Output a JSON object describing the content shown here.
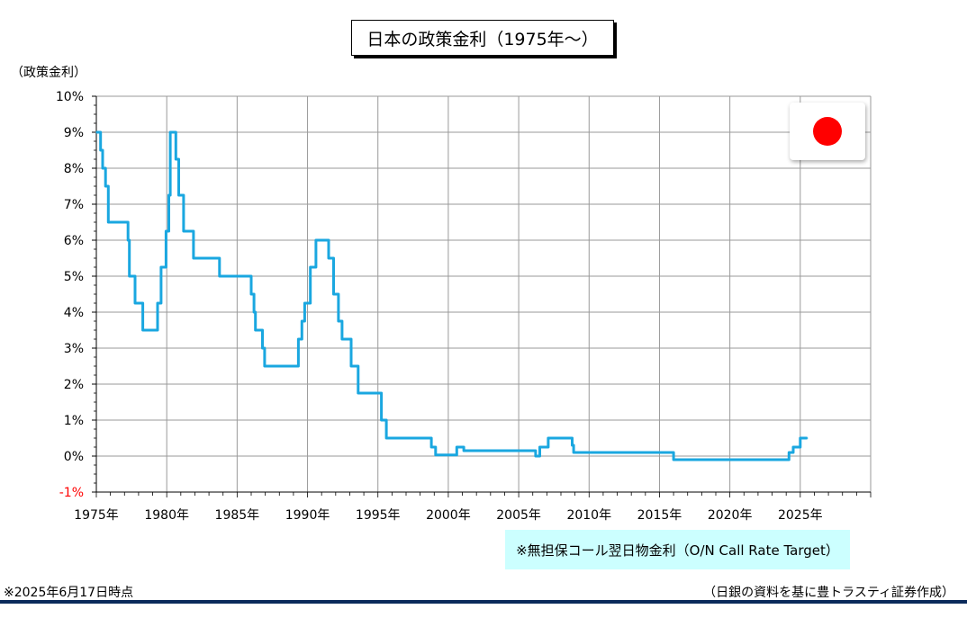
{
  "title": "日本の政策金利（1975年〜）",
  "y_unit": "（政策金利）",
  "note": "※無担保コール翌日物金利（O/N Call Rate Target）",
  "footer_left": "※2025年6月17日時点",
  "footer_right": "（日銀の資料を基に豊トラスティ証券作成）",
  "flag_icon": "japan-flag-icon",
  "colors": {
    "line": "#1aa7e0",
    "negative_tick": "#ff0000",
    "note_bg": "#ccffff",
    "footer_bar": "#0b2a5b"
  },
  "chart_data": {
    "type": "line",
    "title": "日本の政策金利（1975年〜）",
    "ylabel": "（政策金利）",
    "xlim": [
      1975,
      2030
    ],
    "ylim": [
      -1,
      10
    ],
    "grid": true,
    "step": true,
    "x_ticks": [
      1975,
      1980,
      1985,
      1990,
      1995,
      2000,
      2005,
      2010,
      2015,
      2020,
      2025
    ],
    "x_tick_labels": [
      "1975年",
      "1980年",
      "1985年",
      "1990年",
      "1995年",
      "2000年",
      "2005年",
      "2010年",
      "2015年",
      "2020年",
      "2025年"
    ],
    "y_ticks": [
      -1,
      0,
      1,
      2,
      3,
      4,
      5,
      6,
      7,
      8,
      9,
      10
    ],
    "y_tick_labels": [
      "-1%",
      "0%",
      "1%",
      "2%",
      "3%",
      "4%",
      "5%",
      "6%",
      "7%",
      "8%",
      "9%",
      "10%"
    ],
    "series": [
      {
        "values": [
          [
            1975.0,
            9.0
          ],
          [
            1975.3,
            8.5
          ],
          [
            1975.45,
            8.0
          ],
          [
            1975.65,
            7.5
          ],
          [
            1975.85,
            6.5
          ],
          [
            1977.25,
            6.0
          ],
          [
            1977.35,
            5.0
          ],
          [
            1977.75,
            4.25
          ],
          [
            1978.3,
            3.5
          ],
          [
            1979.35,
            4.25
          ],
          [
            1979.6,
            5.25
          ],
          [
            1979.95,
            6.25
          ],
          [
            1980.15,
            7.25
          ],
          [
            1980.25,
            9.0
          ],
          [
            1980.65,
            8.25
          ],
          [
            1980.85,
            7.25
          ],
          [
            1981.2,
            6.25
          ],
          [
            1981.9,
            5.5
          ],
          [
            1983.75,
            5.0
          ],
          [
            1986.0,
            4.5
          ],
          [
            1986.2,
            4.0
          ],
          [
            1986.3,
            3.5
          ],
          [
            1986.8,
            3.0
          ],
          [
            1986.95,
            2.5
          ],
          [
            1989.35,
            3.25
          ],
          [
            1989.6,
            3.75
          ],
          [
            1989.8,
            4.25
          ],
          [
            1990.2,
            5.25
          ],
          [
            1990.6,
            6.0
          ],
          [
            1991.5,
            5.5
          ],
          [
            1991.85,
            4.5
          ],
          [
            1992.2,
            3.75
          ],
          [
            1992.45,
            3.25
          ],
          [
            1993.1,
            2.5
          ],
          [
            1993.6,
            1.75
          ],
          [
            1995.25,
            1.0
          ],
          [
            1995.6,
            0.5
          ],
          [
            1998.8,
            0.25
          ],
          [
            1999.1,
            0.03
          ],
          [
            2000.6,
            0.25
          ],
          [
            2001.1,
            0.15
          ],
          [
            2006.2,
            0.0
          ],
          [
            2006.5,
            0.25
          ],
          [
            2007.1,
            0.5
          ],
          [
            2008.8,
            0.3
          ],
          [
            2008.9,
            0.1
          ],
          [
            2016.0,
            -0.1
          ],
          [
            2024.2,
            0.1
          ],
          [
            2024.5,
            0.25
          ],
          [
            2025.0,
            0.5
          ],
          [
            2025.5,
            0.5
          ]
        ]
      }
    ]
  }
}
